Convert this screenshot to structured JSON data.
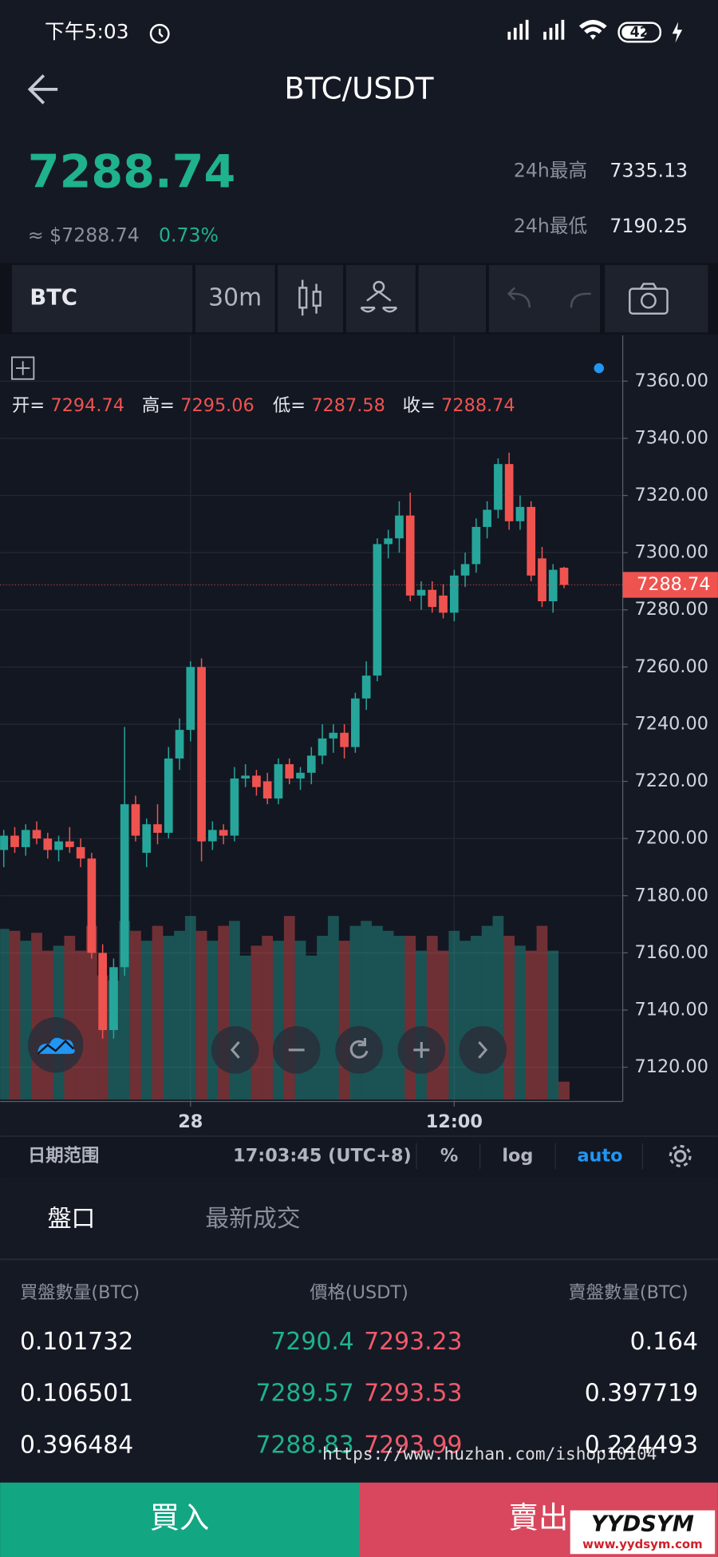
{
  "status_bar": {
    "time": "下午5:03",
    "battery": "42"
  },
  "header": {
    "title": "BTC/USDT",
    "price": "7288.74",
    "usd_price": "≈ $7288.74",
    "change": "0.73%",
    "high_label": "24h最高",
    "high": "7335.13",
    "low_label": "24h最低",
    "low": "7190.25"
  },
  "toolbar": {
    "symbol": "BTC",
    "interval": "30m"
  },
  "chart_data": {
    "type": "candlestick",
    "categories": [
      null,
      null,
      null,
      null,
      null,
      null,
      null,
      null,
      null,
      null,
      null,
      null,
      null,
      null,
      null,
      null,
      null,
      "28",
      null,
      null,
      null,
      null,
      null,
      null,
      null,
      null,
      null,
      null,
      null,
      null,
      null,
      null,
      null,
      null,
      null,
      null,
      null,
      null,
      null,
      null,
      null,
      "12:00",
      null,
      null,
      null,
      null,
      null,
      null,
      null,
      null,
      null,
      null
    ],
    "open": [
      7196,
      7201,
      7197,
      7203,
      7200,
      7196,
      7199,
      7197,
      7193,
      7160,
      7133,
      7155,
      7212,
      7195,
      7205,
      7202,
      7228,
      7238,
      7260,
      7199,
      7203,
      7201,
      7221,
      7222,
      7220,
      7214,
      7226,
      7221,
      7223,
      7229,
      7235,
      7237,
      7232,
      7249,
      7257,
      7303,
      7305,
      7313,
      7285,
      7287,
      7285,
      7279,
      7292,
      7296,
      7309,
      7315,
      7331,
      7311,
      7316,
      7298,
      7283,
      7294.74
    ],
    "high": [
      7203,
      7204,
      7205,
      7206,
      7202,
      7201,
      7204,
      7200,
      7195,
      7163,
      7158,
      7239,
      7215,
      7207,
      7212,
      7232,
      7242,
      7262,
      7263,
      7206,
      7205,
      7225,
      7226,
      7224,
      7223,
      7228,
      7228,
      7225,
      7232,
      7240,
      7240,
      7240,
      7251,
      7262,
      7305,
      7308,
      7318,
      7321,
      7290,
      7290,
      7289,
      7294,
      7300,
      7312,
      7318,
      7333,
      7335,
      7320,
      7318,
      7302,
      7296,
      7295.06
    ],
    "low": [
      7190,
      7195,
      7194,
      7198,
      7193,
      7192,
      7195,
      7190,
      7158,
      7130,
      7130,
      7152,
      7199,
      7190,
      7198,
      7200,
      7224,
      7234,
      7192,
      7196,
      7198,
      7199,
      7218,
      7215,
      7212,
      7212,
      7219,
      7217,
      7219,
      7226,
      7230,
      7228,
      7230,
      7245,
      7255,
      7298,
      7300,
      7283,
      7280,
      7279,
      7277,
      7276,
      7288,
      7293,
      7305,
      7312,
      7308,
      7308,
      7290,
      7281,
      7279,
      7287.58
    ],
    "close": [
      7201,
      7197,
      7203,
      7200,
      7196,
      7199,
      7197,
      7193,
      7160,
      7133,
      7155,
      7212,
      7201,
      7205,
      7202,
      7228,
      7238,
      7260,
      7199,
      7203,
      7201,
      7221,
      7222,
      7218,
      7214,
      7226,
      7221,
      7223,
      7229,
      7235,
      7237,
      7232,
      7249,
      7257,
      7303,
      7305,
      7313,
      7285,
      7287,
      7281,
      7279,
      7292,
      7296,
      7309,
      7315,
      7331,
      7311,
      7316,
      7292,
      7283,
      7294,
      7288.74
    ],
    "volume": [
      172,
      170,
      160,
      168,
      150,
      155,
      165,
      150,
      175,
      125,
      120,
      180,
      170,
      160,
      175,
      165,
      170,
      185,
      170,
      160,
      175,
      180,
      145,
      155,
      165,
      160,
      185,
      160,
      145,
      165,
      185,
      160,
      175,
      180,
      175,
      170,
      165,
      165,
      150,
      165,
      150,
      170,
      160,
      165,
      175,
      185,
      165,
      155,
      150,
      175,
      150,
      18
    ],
    "vlim": [
      0,
      200
    ],
    "ylim": [
      7108,
      7376
    ],
    "yticks": [
      {
        "value": 7120,
        "label": "7120.00"
      },
      {
        "value": 7140,
        "label": "7140.00"
      },
      {
        "value": 7160,
        "label": "7160.00"
      },
      {
        "value": 7180,
        "label": "7180.00"
      },
      {
        "value": 7200,
        "label": "7200.00"
      },
      {
        "value": 7220,
        "label": "7220.00"
      },
      {
        "value": 7240,
        "label": "7240.00"
      },
      {
        "value": 7260,
        "label": "7260.00"
      },
      {
        "value": 7280,
        "label": "7280.00"
      },
      {
        "value": 7300,
        "label": "7300.00"
      },
      {
        "value": 7320,
        "label": "7320.00"
      },
      {
        "value": 7340,
        "label": "7340.00"
      },
      {
        "value": 7360,
        "label": "7360.00"
      }
    ],
    "ohlc_labels": [
      "开=",
      "高=",
      "低=",
      "收="
    ],
    "up_color": "#26a69a",
    "down_color": "#ef5350",
    "grid": true
  },
  "chart_footer": {
    "range": "日期范围",
    "clock": "17:03:45 (UTC+8)",
    "percent": "%",
    "log": "log",
    "auto": "auto"
  },
  "tabs": [
    "盤口",
    "最新成交"
  ],
  "order_book": {
    "headers": [
      "買盤數量(BTC)",
      "價格(USDT)",
      "賣盤數量(BTC)"
    ],
    "rows": [
      [
        "0.101732",
        "7290.4",
        "7293.23",
        "0.164"
      ],
      [
        "0.106501",
        "7289.57",
        "7293.53",
        "0.397719"
      ],
      [
        "0.396484",
        "7288.83",
        "7293.99",
        "0.224493"
      ]
    ]
  },
  "actions": {
    "buy": "買入",
    "sell": "賣出"
  },
  "watermark": {
    "url": "https://www.huzhan.com/ishop10104",
    "brand": "YYDSYM",
    "site": "www.yydsym.com"
  }
}
